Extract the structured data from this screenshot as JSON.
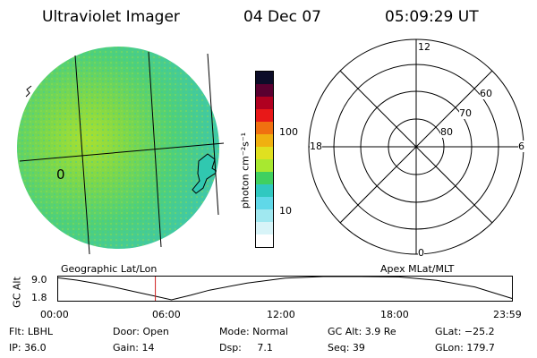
{
  "header": {
    "instrument": "Ultraviolet Imager",
    "date": "04 Dec 07",
    "time": "05:09:29 UT"
  },
  "image_panel": {
    "grid_label": "0",
    "label": "Geographic Lat/Lon"
  },
  "colorbar": {
    "unit_label": "photon cm⁻²s⁻¹",
    "scale": "log",
    "ticks": [
      "100",
      "10"
    ],
    "colors": [
      "#0c0c28",
      "#5a0030",
      "#b00020",
      "#e81818",
      "#f07010",
      "#f0b010",
      "#e0e020",
      "#a8e830",
      "#40d060",
      "#30c8c0",
      "#60d8e8",
      "#a0e8f0",
      "#d8f4f8",
      "#ffffff"
    ]
  },
  "polar_plot": {
    "label": "Apex MLat/MLT",
    "mlt_labels": {
      "top": "12",
      "left": "18",
      "right": "6",
      "bottom": "0"
    },
    "mlat_labels": [
      "60",
      "70",
      "80"
    ]
  },
  "alt_plot": {
    "ylabel": "GC Alt",
    "y_ticks": [
      "9.0",
      "1.8"
    ],
    "x_ticks": [
      "00:00",
      "06:00",
      "12:00",
      "18:00",
      "23:59"
    ]
  },
  "status": {
    "flt": "Flt: LBHL",
    "ip": "IP: 36.0",
    "door": "Door: Open",
    "gain": "Gain: 14",
    "mode": "Mode: Normal",
    "dsp": "Dsp:     7.1",
    "gcalt": "GC Alt: 3.9 Re",
    "seq": "Seq: 39",
    "glat": "GLat: −25.2",
    "glon": "GLon: 179.7"
  },
  "chart_data": {
    "type": "line",
    "x": [
      "00:00",
      "01:00",
      "02:00",
      "03:00",
      "04:00",
      "05:00",
      "05:09",
      "06:00",
      "07:00",
      "08:00",
      "10:00",
      "12:00",
      "14:00",
      "16:00",
      "18:00",
      "20:00",
      "22:00",
      "23:59"
    ],
    "values": [
      8.6,
      7.9,
      6.9,
      5.7,
      4.4,
      3.1,
      3.9,
      1.8,
      3.2,
      4.8,
      7.0,
      8.5,
      9.0,
      9.0,
      8.9,
      7.8,
      5.8,
      2.2
    ],
    "xlabel": "",
    "ylabel": "GC Alt",
    "ylim": [
      1.8,
      9.0
    ],
    "current_marker": "05:09"
  }
}
